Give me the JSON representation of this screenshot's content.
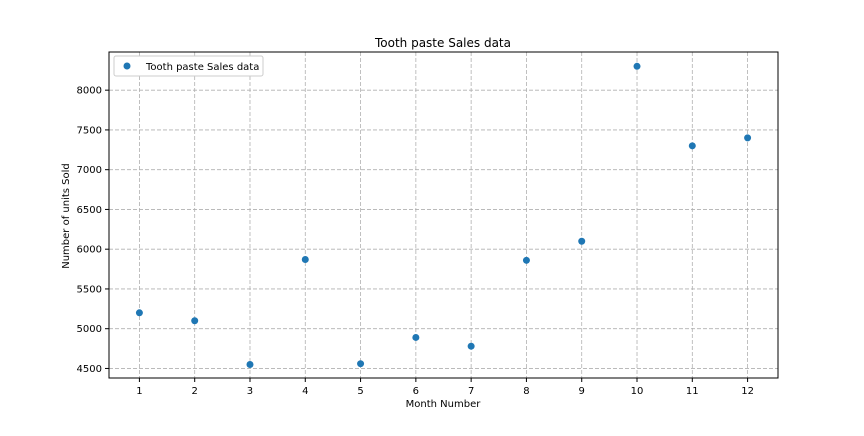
{
  "chart_data": {
    "type": "scatter",
    "title": "Tooth paste Sales data",
    "xlabel": "Month Number",
    "ylabel": "Number of units Sold",
    "x": [
      1,
      2,
      3,
      4,
      5,
      6,
      7,
      8,
      9,
      10,
      11,
      12
    ],
    "series": [
      {
        "name": "Tooth paste Sales data",
        "values": [
          5200,
          5100,
          4550,
          5870,
          4560,
          4890,
          4780,
          5860,
          6100,
          8300,
          7300,
          7400
        ]
      }
    ],
    "xlim": [
      0.45,
      12.55
    ],
    "ylim": [
      4380,
      8480
    ],
    "xticks": [
      "1",
      "2",
      "3",
      "4",
      "5",
      "6",
      "7",
      "8",
      "9",
      "10",
      "11",
      "12"
    ],
    "yticks": [
      "4500",
      "5000",
      "5500",
      "6000",
      "6500",
      "7000",
      "7500",
      "8000"
    ],
    "grid": true,
    "legend_position": "top-left",
    "colors": {
      "series": "#1f77b4",
      "grid": "#b0b0b0",
      "axes": "#000000"
    }
  }
}
